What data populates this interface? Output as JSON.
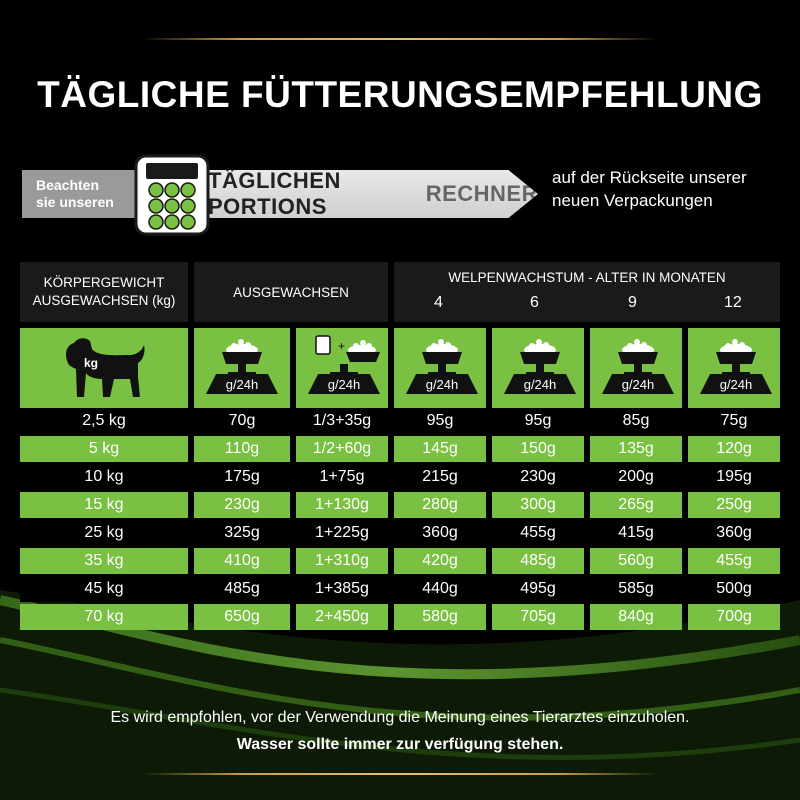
{
  "title": "TÄGLICHE FÜTTERUNGSEMPFEHLUNG",
  "banner": {
    "left_line1": "Beachten",
    "left_line2": "sie unseren",
    "main_dark": "TÄGLICHEN PORTIONS",
    "main_grey": "RECHNER",
    "right_line1": "auf der Rückseite unserer",
    "right_line2": "neuen Verpackungen"
  },
  "table": {
    "header": {
      "weight_line1": "KÖRPERGEWICHT",
      "weight_line2": "AUSGEWACHSEN (kg)",
      "adult": "AUSGEWACHSEN",
      "puppy": "WELPENWACHSTUM - ALTER IN MONATEN",
      "months": [
        "4",
        "6",
        "9",
        "12"
      ]
    },
    "icon_row": {
      "dog_label": "kg",
      "portion_label": "g/24h",
      "plus": "+"
    },
    "rows": [
      [
        "2,5 kg",
        "70g",
        "1/3+35g",
        "95g",
        "95g",
        "85g",
        "75g"
      ],
      [
        "5 kg",
        "110g",
        "1/2+60g",
        "145g",
        "150g",
        "135g",
        "120g"
      ],
      [
        "10 kg",
        "175g",
        "1+75g",
        "215g",
        "230g",
        "200g",
        "195g"
      ],
      [
        "15 kg",
        "230g",
        "1+130g",
        "280g",
        "300g",
        "265g",
        "250g"
      ],
      [
        "25 kg",
        "325g",
        "1+225g",
        "360g",
        "455g",
        "415g",
        "360g"
      ],
      [
        "35 kg",
        "410g",
        "1+310g",
        "420g",
        "485g",
        "560g",
        "455g"
      ],
      [
        "45 kg",
        "485g",
        "1+385g",
        "440g",
        "495g",
        "585g",
        "500g"
      ],
      [
        "70 kg",
        "650g",
        "2+450g",
        "580g",
        "705g",
        "840g",
        "700g"
      ]
    ]
  },
  "footer": {
    "line1": "Es wird empfohlen, vor der Verwendung die Meinung eines Tierarztes einzuholen.",
    "line2": "Wasser sollte immer zur verfügung stehen."
  },
  "colors": {
    "green": "#7ac143",
    "background": "#000000",
    "gold": "#c9a14a"
  }
}
